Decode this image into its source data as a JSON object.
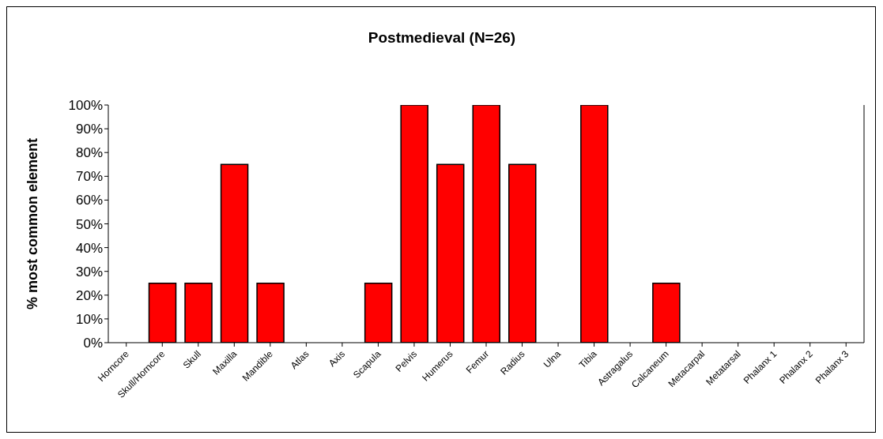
{
  "chart_data": {
    "type": "bar",
    "title": "Postmedieval (N=26)",
    "ylabel": "% most common element",
    "categories": [
      "Horncore",
      "Skull/Horncore",
      "Skull",
      "Maxilla",
      "Mandible",
      "Atlas",
      "Axis",
      "Scapula",
      "Pelvis",
      "Humerus",
      "Femur",
      "Radius",
      "Ulna",
      "Tibia",
      "Astragalus",
      "Calcaneum",
      "Metacarpal",
      "Metatarsal",
      "Phalanx 1",
      "Phalanx 2",
      "Phalanx 3"
    ],
    "values": [
      0,
      25,
      25,
      75,
      25,
      0,
      0,
      25,
      100,
      75,
      100,
      75,
      0,
      100,
      0,
      25,
      0,
      0,
      0,
      0,
      0
    ],
    "color": "#ff0000",
    "ylim": [
      0,
      100
    ],
    "yticks": [
      {
        "value": 0,
        "label": "0%"
      },
      {
        "value": 10,
        "label": "10%"
      },
      {
        "value": 20,
        "label": "20%"
      },
      {
        "value": 30,
        "label": "30%"
      },
      {
        "value": 40,
        "label": "40%"
      },
      {
        "value": 50,
        "label": "50%"
      },
      {
        "value": 60,
        "label": "60%"
      },
      {
        "value": 70,
        "label": "70%"
      },
      {
        "value": 80,
        "label": "80%"
      },
      {
        "value": 90,
        "label": "90%"
      },
      {
        "value": 100,
        "label": "100%"
      }
    ],
    "grid": false,
    "legend": false
  }
}
